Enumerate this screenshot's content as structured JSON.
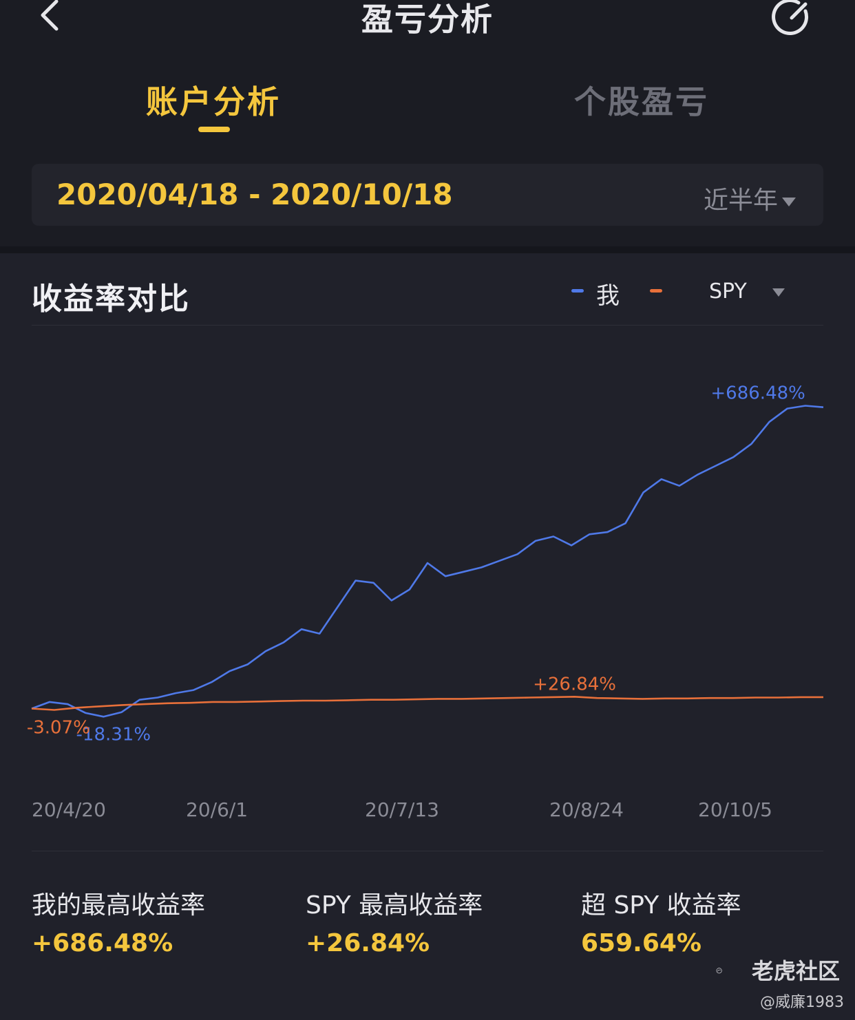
{
  "nav": {
    "title": "盈亏分析",
    "back_icon": "chevron-left-icon",
    "share_icon": "refresh-share-icon"
  },
  "tabs": [
    {
      "label": "账户分析",
      "active": true
    },
    {
      "label": "个股盈亏",
      "active": false
    }
  ],
  "date_filter": {
    "range": "2020/04/18 - 2020/10/18",
    "period": "近半年"
  },
  "chart_section": {
    "title": "收益率对比",
    "legend": {
      "me": "我",
      "benchmark": "SPY"
    }
  },
  "chart_data": {
    "type": "line",
    "x_tick_labels": [
      "20/4/20",
      "20/6/1",
      "20/7/13",
      "20/8/24",
      "20/10/5"
    ],
    "series": [
      {
        "name": "我",
        "color": "#4f79e8",
        "values": [
          0,
          15,
          10,
          -10,
          -18.31,
          -8,
          20,
          25,
          35,
          42,
          60,
          85,
          100,
          130,
          150,
          180,
          170,
          230,
          290,
          285,
          245,
          270,
          330,
          300,
          310,
          320,
          335,
          350,
          380,
          390,
          370,
          395,
          400,
          420,
          490,
          520,
          505,
          530,
          550,
          570,
          600,
          650,
          680,
          686.48,
          683
        ],
        "annotations": {
          "max": "+686.48%",
          "min": "-18.31%"
        }
      },
      {
        "name": "SPY",
        "color": "#e8703a",
        "values": [
          0,
          -3.07,
          2,
          5,
          8,
          10,
          12,
          13,
          15,
          15,
          16,
          17,
          18,
          18,
          19,
          20,
          20,
          21,
          22,
          22,
          23,
          24,
          25,
          26,
          26.84,
          24,
          23,
          22,
          23,
          23,
          24,
          24,
          25,
          25,
          26,
          26
        ],
        "annotations": {
          "max": "+26.84%",
          "min": "-3.07%"
        }
      }
    ],
    "ylim": [
      -60,
      720
    ],
    "grid": false
  },
  "stats": [
    {
      "label": "我的最高收益率",
      "value": "+686.48%"
    },
    {
      "label": "SPY 最高收益率",
      "value": "+26.84%"
    },
    {
      "label": "超 SPY 收益率",
      "value": "659.64%"
    }
  ],
  "watermark": {
    "brand": "老虎社区",
    "user": "@威廉1983"
  }
}
